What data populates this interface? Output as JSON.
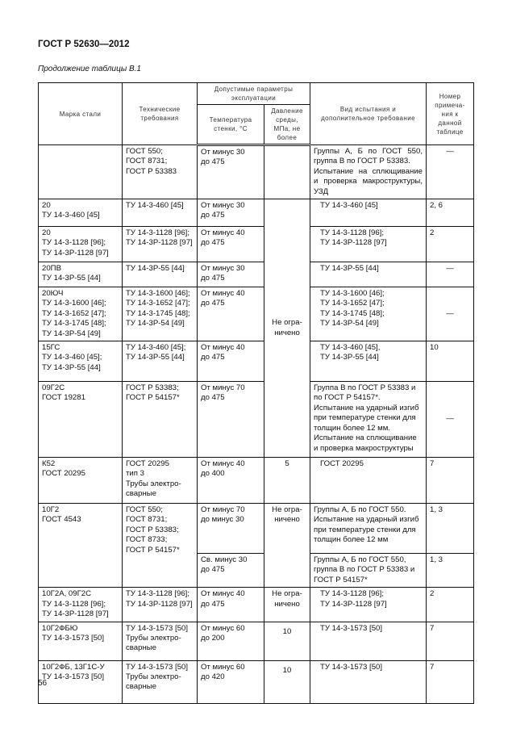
{
  "header": {
    "doc_title": "ГОСТ Р 52630—2012",
    "caption": "Продолжение таблицы В.1"
  },
  "table": {
    "headers": {
      "mark": "Марка стали",
      "tech": "Технические требования",
      "params": "Допустимые параметры эксплуатации",
      "temp": "Температура стенки, °С",
      "pressure": "Давление среды, МПа, не более",
      "test": "Вид испытания и дополнительное требование",
      "note": "Номер примеча-ния к данной таблице"
    },
    "rows": [
      {
        "mark": "",
        "tech": "ГОСТ 550;\nГОСТ 8731;\nГОСТ Р 53383",
        "temp": "От минус 30\nдо 475",
        "pressure": "",
        "test": "Группы А, Б по ГОСТ 550, группа В по ГОСТ Р 53383.\nИспытание на сплющивание и проверка макроструктуры, УЗД",
        "note": "—"
      },
      {
        "mark": "20\nТУ 14-3-460 [45]",
        "tech": "ТУ 14-3-460 [45]",
        "temp": "От минус 30\nдо 475",
        "pressure": "Не огра-\nничено",
        "test": "ТУ 14-3-460 [45]",
        "note": "2, 6"
      },
      {
        "mark": "20\nТУ 14-3-1128 [96];\nТУ 14-3Р-1128 [97]",
        "tech": "ТУ 14-3-1128 [96];\nТУ 14-3Р-1128 [97]",
        "temp": "От минус 40\nдо 475",
        "test": "ТУ 14-3-1128 [96];\nТУ 14-3Р-1128 [97]",
        "note": "2"
      },
      {
        "mark": "20ПВ\nТУ 14-3Р-55 [44]",
        "tech": "ТУ 14-3Р-55 [44]",
        "temp": "От минус 30\nдо 475",
        "test": "ТУ 14-3Р-55 [44]",
        "note": "—"
      },
      {
        "mark": "20ЮЧ\nТУ 14-3-1600 [46];\nТУ 14-3-1652 [47];\nТУ 14-3-1745 [48];\nТУ 14-3Р-54 [49]",
        "tech": "ТУ 14-3-1600 [46];\nТУ 14-3-1652 [47];\nТУ 14-3-1745 [48];\nТУ 14-3Р-54 [49]",
        "temp": "От минус 40\nдо 475",
        "test": "ТУ 14-3-1600 [46];\nТУ 14-3-1652 [47];\nТУ 14-3-1745 [48];\nТУ 14-3Р-54 [49]",
        "note": "—"
      },
      {
        "mark": "15ГС\nТУ 14-3-460 [45];\nТУ 14-3Р-55 [44]",
        "tech": "ТУ 14-3-460 [45];\nТУ 14-3Р-55 [44]",
        "temp": "От минус 40\nдо 475",
        "test": "ТУ 14-3-460 [45],\nТУ 14-3Р-55 [44]",
        "note": "10"
      },
      {
        "mark": "09Г2С\nГОСТ 19281",
        "tech": "ГОСТ Р 53383;\nГОСТ Р 54157*",
        "temp": "От минус 70\nдо 475",
        "test": "Группа В по ГОСТ Р 53383 и по ГОСТ Р 54157*.\nИспытание на ударный изгиб при температуре стенки для толщин более 12 мм.\nИспытание на сплющивание и проверка макроструктуры",
        "note": "—"
      },
      {
        "mark": "К52\nГОСТ 20295",
        "tech": "ГОСТ 20295\nтип 3\nТрубы электро-\nсварные",
        "temp": "От минус 40\nдо 400",
        "pressure": "5",
        "test": "ГОСТ 20295",
        "note": "7"
      },
      {
        "mark": "10Г2\nГОСТ 4543",
        "tech": "ГОСТ 550;\nГОСТ 8731;\nГОСТ Р 53383;\nГОСТ 8733;\nГОСТ Р 54157*",
        "temp": "От минус 70\nдо минус 30",
        "pressure": "Не огра-\nничено",
        "test": "Группы А, Б по ГОСТ 550.\nИспытание на ударный изгиб при температуре стенки для толщин более 12 мм",
        "note": "1, 3",
        "sub": {
          "temp": "Св. минус 30\nдо 475",
          "test": "Группы А, Б по ГОСТ 550, группа В по ГОСТ Р 53383 и ГОСТ Р 54157*",
          "note": "1, 3"
        }
      },
      {
        "mark": "10Г2А, 09Г2С\nТУ 14-3-1128 [96];\nТУ 14-3Р-1128 [97]",
        "tech": "ТУ 14-3-1128 [96];\nТУ 14-3Р-1128 [97]",
        "temp": "От минус 40\nдо 475",
        "pressure": "Не огра-\nничено",
        "test": "ТУ 14-3-1128 [96];\nТУ 14-3Р-1128 [97]",
        "note": "2"
      },
      {
        "mark": "10Г2ФБЮ\nТУ 14-3-1573 [50]",
        "tech": "ТУ 14-3-1573 [50]\nТрубы электро-\nсварные",
        "temp": "От минус 60\nдо 200",
        "pressure": "10",
        "test": "ТУ 14-3-1573 [50]",
        "note": "7"
      },
      {
        "mark": "10Г2ФБ, 13Г1С-У\nТУ 14-3-1573 [50]",
        "tech": "ТУ 14-3-1573 [50]\nТрубы электро-\nсварные",
        "temp": "От минус 60\nдо 420",
        "pressure": "10",
        "test": "ТУ 14-3-1573 [50]",
        "note": "7"
      }
    ]
  },
  "footer": {
    "page_number": "56"
  }
}
